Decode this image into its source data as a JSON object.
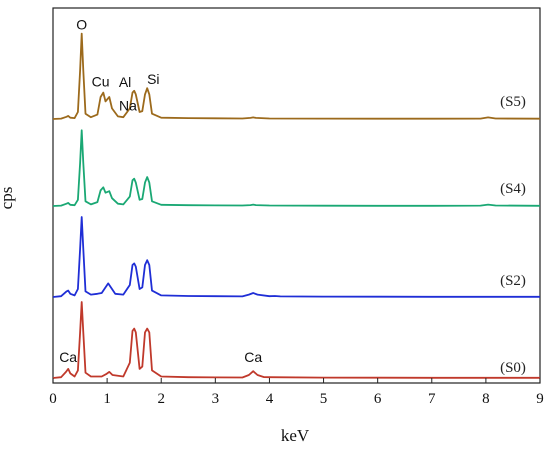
{
  "chart_data": {
    "type": "line",
    "xlabel": "keV",
    "ylabel": "cps",
    "xlim": [
      0,
      9
    ],
    "xticks": [
      "0",
      "1",
      "2",
      "3",
      "4",
      "5",
      "6",
      "7",
      "8",
      "9"
    ],
    "grid": false,
    "series": [
      {
        "name": "(S5)",
        "color": "#9c6a1c",
        "points": [
          [
            0,
            0
          ],
          [
            0.15,
            0.005
          ],
          [
            0.25,
            0.025
          ],
          [
            0.28,
            0.035
          ],
          [
            0.32,
            0.015
          ],
          [
            0.4,
            0.01
          ],
          [
            0.46,
            0.08
          ],
          [
            0.5,
            0.55
          ],
          [
            0.53,
            0.97
          ],
          [
            0.56,
            0.55
          ],
          [
            0.6,
            0.06
          ],
          [
            0.7,
            0.02
          ],
          [
            0.82,
            0.05
          ],
          [
            0.88,
            0.25
          ],
          [
            0.93,
            0.3
          ],
          [
            0.97,
            0.2
          ],
          [
            1.04,
            0.25
          ],
          [
            1.09,
            0.12
          ],
          [
            1.2,
            0.03
          ],
          [
            1.3,
            0.02
          ],
          [
            1.42,
            0.12
          ],
          [
            1.47,
            0.3
          ],
          [
            1.5,
            0.32
          ],
          [
            1.53,
            0.28
          ],
          [
            1.6,
            0.08
          ],
          [
            1.65,
            0.09
          ],
          [
            1.7,
            0.28
          ],
          [
            1.74,
            0.35
          ],
          [
            1.78,
            0.28
          ],
          [
            1.83,
            0.06
          ],
          [
            2,
            0.015
          ],
          [
            2.5,
            0.01
          ],
          [
            3,
            0.008
          ],
          [
            3.5,
            0.006
          ],
          [
            3.65,
            0.012
          ],
          [
            3.7,
            0.018
          ],
          [
            3.75,
            0.012
          ],
          [
            4,
            0.006
          ],
          [
            5,
            0.004
          ],
          [
            6,
            0.003
          ],
          [
            7,
            0.003
          ],
          [
            7.9,
            0.005
          ],
          [
            8.04,
            0.018
          ],
          [
            8.18,
            0.006
          ],
          [
            9,
            0.003
          ]
        ]
      },
      {
        "name": "(S4)",
        "color": "#1aa874",
        "points": [
          [
            0,
            0
          ],
          [
            0.15,
            0.005
          ],
          [
            0.25,
            0.03
          ],
          [
            0.28,
            0.04
          ],
          [
            0.32,
            0.015
          ],
          [
            0.4,
            0.01
          ],
          [
            0.46,
            0.08
          ],
          [
            0.5,
            0.55
          ],
          [
            0.53,
            0.97
          ],
          [
            0.56,
            0.55
          ],
          [
            0.6,
            0.06
          ],
          [
            0.7,
            0.02
          ],
          [
            0.82,
            0.05
          ],
          [
            0.88,
            0.2
          ],
          [
            0.93,
            0.24
          ],
          [
            0.97,
            0.17
          ],
          [
            1.04,
            0.19
          ],
          [
            1.09,
            0.1
          ],
          [
            1.2,
            0.03
          ],
          [
            1.3,
            0.02
          ],
          [
            1.42,
            0.12
          ],
          [
            1.47,
            0.33
          ],
          [
            1.5,
            0.35
          ],
          [
            1.53,
            0.3
          ],
          [
            1.6,
            0.08
          ],
          [
            1.65,
            0.09
          ],
          [
            1.7,
            0.3
          ],
          [
            1.74,
            0.37
          ],
          [
            1.78,
            0.3
          ],
          [
            1.83,
            0.06
          ],
          [
            2,
            0.015
          ],
          [
            2.5,
            0.01
          ],
          [
            3,
            0.008
          ],
          [
            3.5,
            0.006
          ],
          [
            3.65,
            0.012
          ],
          [
            3.7,
            0.018
          ],
          [
            3.75,
            0.012
          ],
          [
            4,
            0.006
          ],
          [
            5,
            0.004
          ],
          [
            6,
            0.003
          ],
          [
            7,
            0.003
          ],
          [
            7.9,
            0.005
          ],
          [
            8.04,
            0.018
          ],
          [
            8.18,
            0.006
          ],
          [
            9,
            0.003
          ]
        ]
      },
      {
        "name": "(S2)",
        "color": "#1f2ed6",
        "points": [
          [
            0,
            0
          ],
          [
            0.15,
            0.01
          ],
          [
            0.25,
            0.07
          ],
          [
            0.28,
            0.08
          ],
          [
            0.32,
            0.04
          ],
          [
            0.4,
            0.02
          ],
          [
            0.46,
            0.1
          ],
          [
            0.5,
            0.6
          ],
          [
            0.53,
            1
          ],
          [
            0.56,
            0.6
          ],
          [
            0.6,
            0.07
          ],
          [
            0.7,
            0.03
          ],
          [
            0.82,
            0.04
          ],
          [
            0.9,
            0.05
          ],
          [
            0.97,
            0.12
          ],
          [
            1.02,
            0.17
          ],
          [
            1.07,
            0.12
          ],
          [
            1.15,
            0.04
          ],
          [
            1.3,
            0.03
          ],
          [
            1.42,
            0.15
          ],
          [
            1.47,
            0.4
          ],
          [
            1.5,
            0.42
          ],
          [
            1.53,
            0.38
          ],
          [
            1.6,
            0.1
          ],
          [
            1.65,
            0.12
          ],
          [
            1.7,
            0.4
          ],
          [
            1.74,
            0.46
          ],
          [
            1.78,
            0.4
          ],
          [
            1.83,
            0.08
          ],
          [
            2,
            0.02
          ],
          [
            2.5,
            0.012
          ],
          [
            3,
            0.01
          ],
          [
            3.5,
            0.008
          ],
          [
            3.62,
            0.03
          ],
          [
            3.7,
            0.05
          ],
          [
            3.78,
            0.03
          ],
          [
            4,
            0.01
          ],
          [
            4.1,
            0.012
          ],
          [
            4.2,
            0.008
          ],
          [
            5,
            0.005
          ],
          [
            6,
            0.004
          ],
          [
            7,
            0.003
          ],
          [
            8,
            0.003
          ],
          [
            9,
            0.003
          ]
        ]
      },
      {
        "name": "(S0)",
        "color": "#c0392b",
        "points": [
          [
            0,
            0
          ],
          [
            0.15,
            0.01
          ],
          [
            0.24,
            0.08
          ],
          [
            0.28,
            0.12
          ],
          [
            0.32,
            0.06
          ],
          [
            0.4,
            0.02
          ],
          [
            0.46,
            0.1
          ],
          [
            0.5,
            0.6
          ],
          [
            0.53,
            1
          ],
          [
            0.56,
            0.6
          ],
          [
            0.6,
            0.07
          ],
          [
            0.7,
            0.02
          ],
          [
            0.9,
            0.02
          ],
          [
            0.98,
            0.05
          ],
          [
            1.04,
            0.08
          ],
          [
            1.1,
            0.04
          ],
          [
            1.3,
            0.02
          ],
          [
            1.42,
            0.2
          ],
          [
            1.47,
            0.62
          ],
          [
            1.5,
            0.65
          ],
          [
            1.53,
            0.6
          ],
          [
            1.6,
            0.12
          ],
          [
            1.65,
            0.15
          ],
          [
            1.7,
            0.6
          ],
          [
            1.74,
            0.65
          ],
          [
            1.78,
            0.6
          ],
          [
            1.83,
            0.1
          ],
          [
            2,
            0.02
          ],
          [
            2.5,
            0.01
          ],
          [
            3,
            0.008
          ],
          [
            3.5,
            0.006
          ],
          [
            3.62,
            0.04
          ],
          [
            3.7,
            0.09
          ],
          [
            3.78,
            0.04
          ],
          [
            3.9,
            0.012
          ],
          [
            4,
            0.01
          ],
          [
            5,
            0.005
          ],
          [
            6,
            0.004
          ],
          [
            7,
            0.003
          ],
          [
            8,
            0.003
          ],
          [
            9,
            0.003
          ]
        ]
      }
    ],
    "annotations": [
      {
        "text": "O",
        "x": 0.53,
        "series": "(S5)"
      },
      {
        "text": "Cu",
        "x": 0.88,
        "series": "(S5)"
      },
      {
        "text": "Na",
        "x": 1.2,
        "series": "(S5)"
      },
      {
        "text": "Al",
        "x": 1.48,
        "series": "(S5)"
      },
      {
        "text": "Si",
        "x": 1.78,
        "series": "(S5)"
      },
      {
        "text": "Ca",
        "x": 0.28,
        "series": "(S0)"
      },
      {
        "text": "Ca",
        "x": 3.7,
        "series": "(S0)"
      }
    ]
  }
}
